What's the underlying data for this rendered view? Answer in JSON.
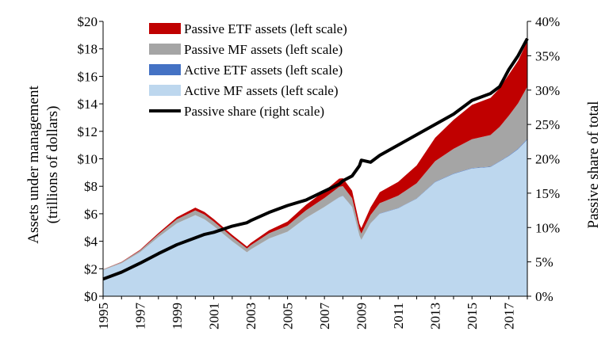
{
  "chart_data": {
    "type": "area",
    "xlabel": "",
    "ylabel": "Assets under management (trillions of dollars)",
    "ylabel_lines": [
      "Assets under management",
      "(trillions of dollars)"
    ],
    "y2label": "Passive share of total",
    "xlim": [
      1995,
      2018
    ],
    "ylim": [
      0,
      20
    ],
    "y2lim": [
      0,
      40
    ],
    "x_ticks": [
      "1995",
      "1997",
      "1999",
      "2001",
      "2003",
      "2005",
      "2007",
      "2009",
      "2011",
      "2013",
      "2015",
      "2017"
    ],
    "y_ticks": [
      "$0",
      "$2",
      "$4",
      "$6",
      "$8",
      "$10",
      "$12",
      "$14",
      "$16",
      "$18",
      "$20"
    ],
    "y2_ticks": [
      "0%",
      "5%",
      "10%",
      "15%",
      "20%",
      "25%",
      "30%",
      "35%",
      "40%"
    ],
    "legend_position": "top-left",
    "legend": [
      {
        "label": "Passive ETF assets (left scale)",
        "color": "#c00000",
        "kind": "area"
      },
      {
        "label": "Passive MF assets (left scale)",
        "color": "#a5a5a5",
        "kind": "area"
      },
      {
        "label": "Active ETF assets (left scale)",
        "color": "#4472c4",
        "kind": "area"
      },
      {
        "label": "Active MF assets (left scale)",
        "color": "#bdd7ee",
        "kind": "area"
      },
      {
        "label": "Passive share (right scale)",
        "color": "#000000",
        "kind": "line"
      }
    ],
    "x": [
      1995,
      1996,
      1997,
      1998,
      1999,
      2000,
      2000.5,
      2001,
      2002,
      2002.8,
      2003,
      2004,
      2005,
      2006,
      2007,
      2007.8,
      2008,
      2008.5,
      2008.9,
      2009,
      2009.5,
      2010,
      2011,
      2012,
      2013,
      2014,
      2015,
      2016,
      2016.5,
      2017,
      2017.5,
      2018
    ],
    "series": [
      {
        "name": "Active MF assets (left scale)",
        "color": "#bdd7ee",
        "values": [
          1.9,
          2.4,
          3.2,
          4.3,
          5.3,
          5.9,
          5.6,
          5.1,
          4.0,
          3.2,
          3.4,
          4.2,
          4.7,
          5.7,
          6.5,
          7.2,
          7.3,
          6.5,
          4.4,
          4.1,
          5.3,
          6.0,
          6.4,
          7.1,
          8.3,
          8.9,
          9.3,
          9.4,
          9.8,
          10.2,
          10.7,
          11.4
        ]
      },
      {
        "name": "Active ETF assets (left scale)",
        "color": "#4472c4",
        "values": [
          0,
          0,
          0,
          0,
          0,
          0,
          0,
          0,
          0,
          0,
          0,
          0,
          0,
          0,
          0,
          0.01,
          0.01,
          0.01,
          0.01,
          0.01,
          0.01,
          0.02,
          0.02,
          0.02,
          0.03,
          0.03,
          0.03,
          0.03,
          0.03,
          0.04,
          0.04,
          0.05
        ]
      },
      {
        "name": "Passive MF assets (left scale)",
        "color": "#a5a5a5",
        "values": [
          0.05,
          0.08,
          0.12,
          0.2,
          0.3,
          0.35,
          0.34,
          0.33,
          0.3,
          0.27,
          0.3,
          0.38,
          0.43,
          0.55,
          0.65,
          0.75,
          0.7,
          0.62,
          0.45,
          0.45,
          0.6,
          0.75,
          0.9,
          1.1,
          1.5,
          1.8,
          2.1,
          2.3,
          2.5,
          2.9,
          3.3,
          3.8
        ]
      },
      {
        "name": "Passive ETF assets (left scale)",
        "color": "#c00000",
        "values": [
          0.01,
          0.02,
          0.05,
          0.1,
          0.15,
          0.2,
          0.19,
          0.18,
          0.17,
          0.15,
          0.17,
          0.22,
          0.3,
          0.4,
          0.5,
          0.6,
          0.58,
          0.55,
          0.4,
          0.4,
          0.55,
          0.8,
          1.0,
          1.3,
          1.7,
          2.1,
          2.5,
          2.7,
          2.8,
          3.0,
          3.1,
          3.3
        ]
      },
      {
        "name": "Passive share (right scale)",
        "color": "#000000",
        "axis": "right",
        "values": [
          2.5,
          3.5,
          4.8,
          6.2,
          7.5,
          8.5,
          9.0,
          9.3,
          10.2,
          10.7,
          11.0,
          12.2,
          13.2,
          14.0,
          15.3,
          16.3,
          16.8,
          17.5,
          19.0,
          19.8,
          19.5,
          20.5,
          22.0,
          23.5,
          25.0,
          26.5,
          28.5,
          29.5,
          30.5,
          33.0,
          35.0,
          37.5
        ]
      }
    ]
  }
}
